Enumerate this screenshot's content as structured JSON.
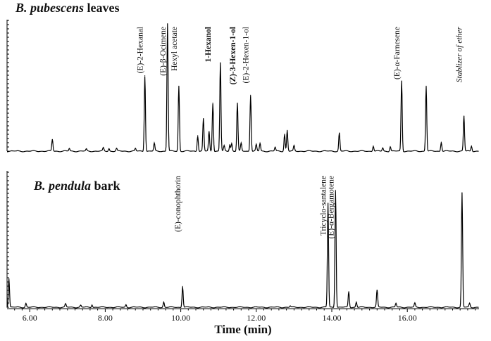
{
  "chart_data": [
    {
      "type": "line",
      "title": {
        "italic": "B. pubescens",
        "plain": " leaves"
      },
      "xlim": [
        5.4,
        17.9
      ],
      "peaks": [
        {
          "rt": 6.6,
          "h": 0.09
        },
        {
          "rt": 7.05,
          "h": 0.02
        },
        {
          "rt": 7.5,
          "h": 0.015
        },
        {
          "rt": 7.95,
          "h": 0.025
        },
        {
          "rt": 8.1,
          "h": 0.02
        },
        {
          "rt": 8.3,
          "h": 0.02
        },
        {
          "rt": 8.8,
          "h": 0.02
        },
        {
          "rt": 9.05,
          "h": 0.58,
          "label": "(E)-2-Hexanal",
          "style": "normal"
        },
        {
          "rt": 9.3,
          "h": 0.06
        },
        {
          "rt": 9.65,
          "h": 0.98,
          "label": "(E)-β-Ocimene",
          "style": "normal"
        },
        {
          "rt": 9.95,
          "h": 0.5,
          "label": "Hexyl acetate",
          "style": "normal"
        },
        {
          "rt": 10.45,
          "h": 0.12
        },
        {
          "rt": 10.6,
          "h": 0.25
        },
        {
          "rt": 10.75,
          "h": 0.15
        },
        {
          "rt": 10.85,
          "h": 0.37,
          "label": "1-Hexanol",
          "style": "bold"
        },
        {
          "rt": 11.05,
          "h": 0.68
        },
        {
          "rt": 11.15,
          "h": 0.04
        },
        {
          "rt": 11.3,
          "h": 0.05
        },
        {
          "rt": 11.35,
          "h": 0.06
        },
        {
          "rt": 11.5,
          "h": 0.37,
          "label": "(Z)-3-Hexen-1-ol",
          "style": "bold"
        },
        {
          "rt": 11.6,
          "h": 0.06
        },
        {
          "rt": 11.85,
          "h": 0.43,
          "label": "(E)-2-Hexen-1-ol",
          "style": "normal"
        },
        {
          "rt": 12.0,
          "h": 0.05
        },
        {
          "rt": 12.1,
          "h": 0.06
        },
        {
          "rt": 12.5,
          "h": 0.03
        },
        {
          "rt": 12.75,
          "h": 0.13
        },
        {
          "rt": 12.82,
          "h": 0.16
        },
        {
          "rt": 13.0,
          "h": 0.04
        },
        {
          "rt": 14.2,
          "h": 0.14
        },
        {
          "rt": 15.1,
          "h": 0.04
        },
        {
          "rt": 15.35,
          "h": 0.025
        },
        {
          "rt": 15.55,
          "h": 0.035
        },
        {
          "rt": 15.85,
          "h": 0.54,
          "label": "(E)-α-Farnesene",
          "style": "normal"
        },
        {
          "rt": 16.5,
          "h": 0.5
        },
        {
          "rt": 16.9,
          "h": 0.07
        },
        {
          "rt": 17.5,
          "h": 0.27,
          "label": "Stablizer of ether",
          "style": "italic"
        },
        {
          "rt": 17.7,
          "h": 0.04
        }
      ]
    },
    {
      "type": "line",
      "title": {
        "italic": "B. pendula",
        "plain": " bark"
      },
      "xlim": [
        5.4,
        17.9
      ],
      "xticks": [
        "6.00",
        "8.00",
        "10.00",
        "12.00",
        "14.00",
        "16.00"
      ],
      "xlabel": "Time (min)",
      "peaks": [
        {
          "rt": 5.45,
          "h": 0.22
        },
        {
          "rt": 5.9,
          "h": 0.03
        },
        {
          "rt": 6.95,
          "h": 0.025
        },
        {
          "rt": 7.35,
          "h": 0.015
        },
        {
          "rt": 7.65,
          "h": 0.02
        },
        {
          "rt": 8.55,
          "h": 0.02
        },
        {
          "rt": 9.55,
          "h": 0.04
        },
        {
          "rt": 10.05,
          "h": 0.16,
          "label": "(E)-conophthorin",
          "style": "normal"
        },
        {
          "rt": 12.9,
          "h": 0.01
        },
        {
          "rt": 13.9,
          "h": 0.8,
          "label": "Tricyclo-santalene",
          "style": "normal"
        },
        {
          "rt": 14.1,
          "h": 0.9,
          "label": "(E)-α-Bergamotene",
          "style": "normal"
        },
        {
          "rt": 14.45,
          "h": 0.12
        },
        {
          "rt": 14.65,
          "h": 0.04
        },
        {
          "rt": 15.2,
          "h": 0.13
        },
        {
          "rt": 15.7,
          "h": 0.03
        },
        {
          "rt": 16.2,
          "h": 0.03
        },
        {
          "rt": 17.45,
          "h": 0.88
        },
        {
          "rt": 17.65,
          "h": 0.03
        }
      ]
    }
  ]
}
